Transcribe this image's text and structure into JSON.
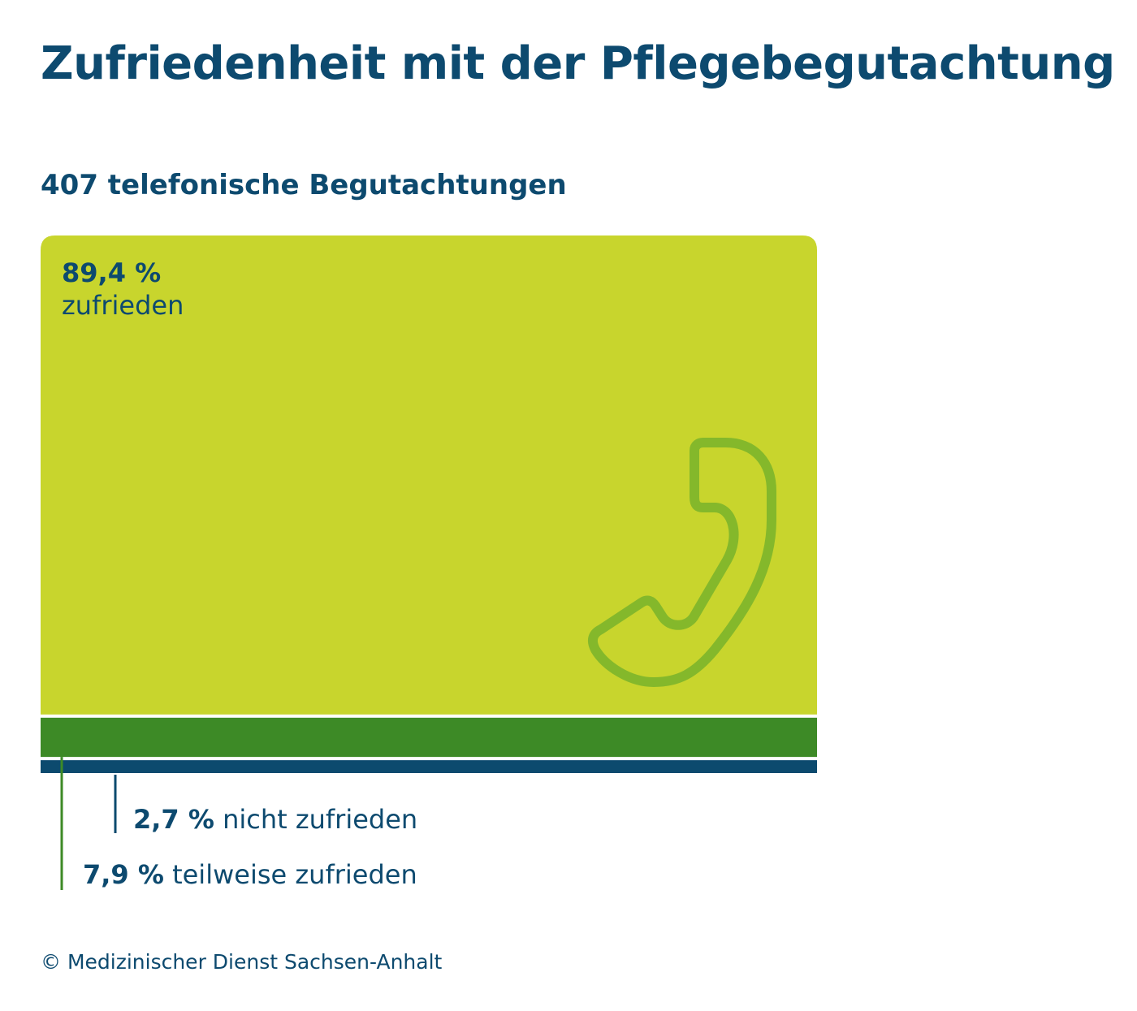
{
  "title": "Zufriedenheit mit der Pflegebegutachtung",
  "subtitle": "407 telefonische Begutachtungen",
  "footer": "© Medizinischer Dienst Sachsen-Anhalt",
  "icon": "phone-handset-icon",
  "colors": {
    "zufrieden": "#c8d52d",
    "teilweise": "#3d8a26",
    "nicht": "#0c4a6e",
    "icon": "#84b82b",
    "text": "#0d4a6f"
  },
  "chart_data": {
    "type": "bar",
    "title": "Zufriedenheit mit der Pflegebegutachtung",
    "subtitle": "407 telefonische Begutachtungen",
    "unit": "%",
    "categories": [
      "zufrieden",
      "teilweise zufrieden",
      "nicht zufrieden"
    ],
    "values": [
      89.4,
      7.9,
      2.7
    ],
    "labels": {
      "zufrieden": {
        "pct": "89,4 %",
        "text": "zufrieden"
      },
      "teilweise": {
        "pct": "7,9 %",
        "text": "teilweise zufrieden"
      },
      "nicht": {
        "pct": "2,7 %",
        "text": "nicht zufrieden"
      }
    }
  }
}
